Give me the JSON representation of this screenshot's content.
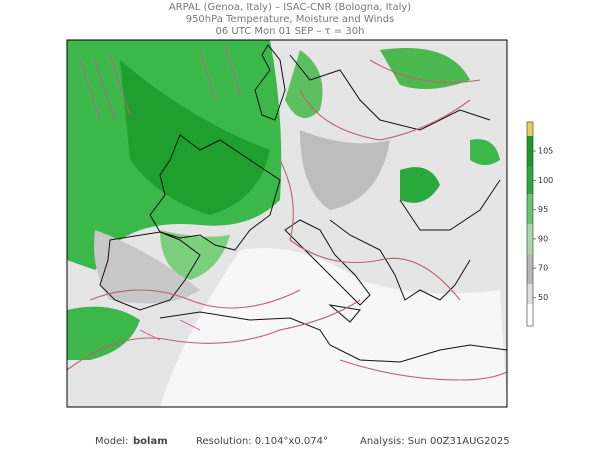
{
  "header": {
    "line1": "ARPAL (Genoa, Italy)  –  ISAC-CNR (Bologna, Italy)",
    "line2": "950hPa Temperature, Moisture and Winds",
    "line3": "06 UTC Mon 01 SEP  –  τ = 30h"
  },
  "legend": {
    "ticks": [
      105,
      100,
      95,
      90,
      70,
      50
    ]
  },
  "footer": {
    "model_label": "Model:",
    "model": "bolam",
    "resolution": "Resolution: 0.104°x0.074°",
    "analysis": "Analysis: Sun 00Z31AUG2025"
  }
}
